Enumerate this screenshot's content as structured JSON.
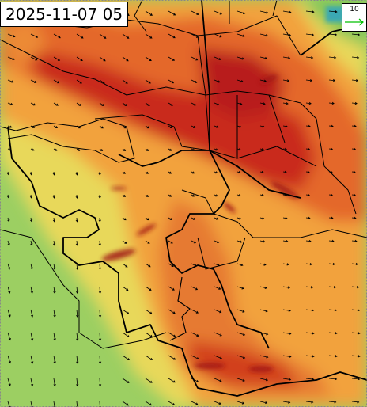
{
  "header": {
    "timestamp": "2025-11-07 05"
  },
  "legend": {
    "reference_speed": 10
  }
}
